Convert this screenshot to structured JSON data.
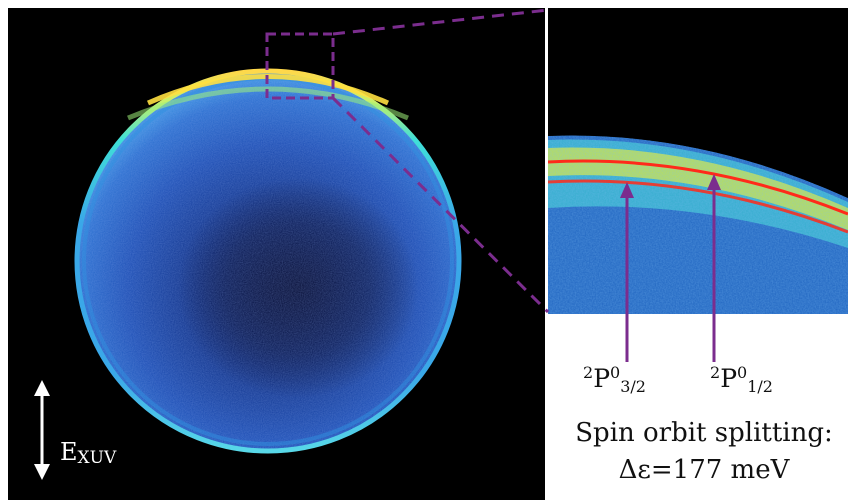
{
  "labels": {
    "peak_left_sup": "2",
    "peak_left_main": "P",
    "peak_left_sup2": "0",
    "peak_left_sub": "3/2",
    "peak_right_sup": "2",
    "peak_right_main": "P",
    "peak_right_sup2": "0",
    "peak_right_sub": "1/2",
    "caption_title": "Spin orbit splitting:",
    "caption_value": "Δε=177 meV",
    "polarization_main": "E",
    "polarization_sub": "XUV"
  },
  "colors": {
    "background": "#000000",
    "highlight_box": "#7b2d8e",
    "arrow": "#7b2d8e",
    "polarization_arrow": "#ffffff"
  }
}
